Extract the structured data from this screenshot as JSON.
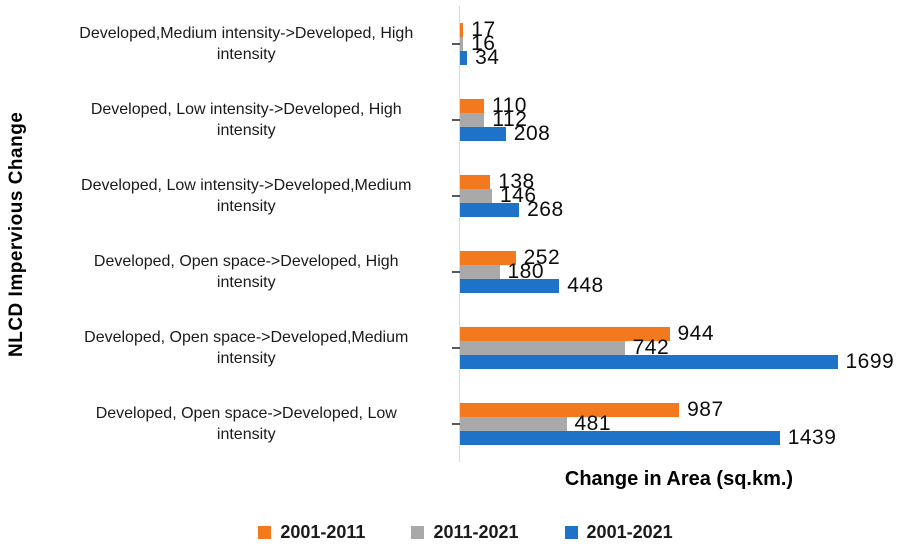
{
  "chart_data": {
    "type": "bar",
    "orientation": "horizontal",
    "title": "",
    "xlabel": "Change in Area (sq.km.)",
    "ylabel": "NLCD Impervious Change",
    "xlim": [
      0,
      1750
    ],
    "grid": false,
    "legend_position": "bottom",
    "value_labels": true,
    "categories": [
      "Developed,Medium intensity->Developed, High\nintensity",
      "Developed, Low intensity->Developed, High\nintensity",
      "Developed, Low intensity->Developed,Medium\nintensity",
      "Developed, Open space->Developed, High\nintensity",
      "Developed, Open space->Developed,Medium\nintensity",
      "Developed, Open space->Developed, Low\nintensity"
    ],
    "series": [
      {
        "name": "2001-2011",
        "color": "#F2791E",
        "values": [
          17,
          110,
          138,
          252,
          944,
          987
        ]
      },
      {
        "name": "2011-2021",
        "color": "#A9A9A9",
        "values": [
          16,
          112,
          146,
          180,
          742,
          481
        ]
      },
      {
        "name": "2001-2021",
        "color": "#1E72C8",
        "values": [
          34,
          208,
          268,
          448,
          1699,
          1439
        ]
      }
    ],
    "colors": {
      "axis_line": "#d9d9d9",
      "tick": "#595959",
      "text": "#0d0d0d"
    }
  }
}
